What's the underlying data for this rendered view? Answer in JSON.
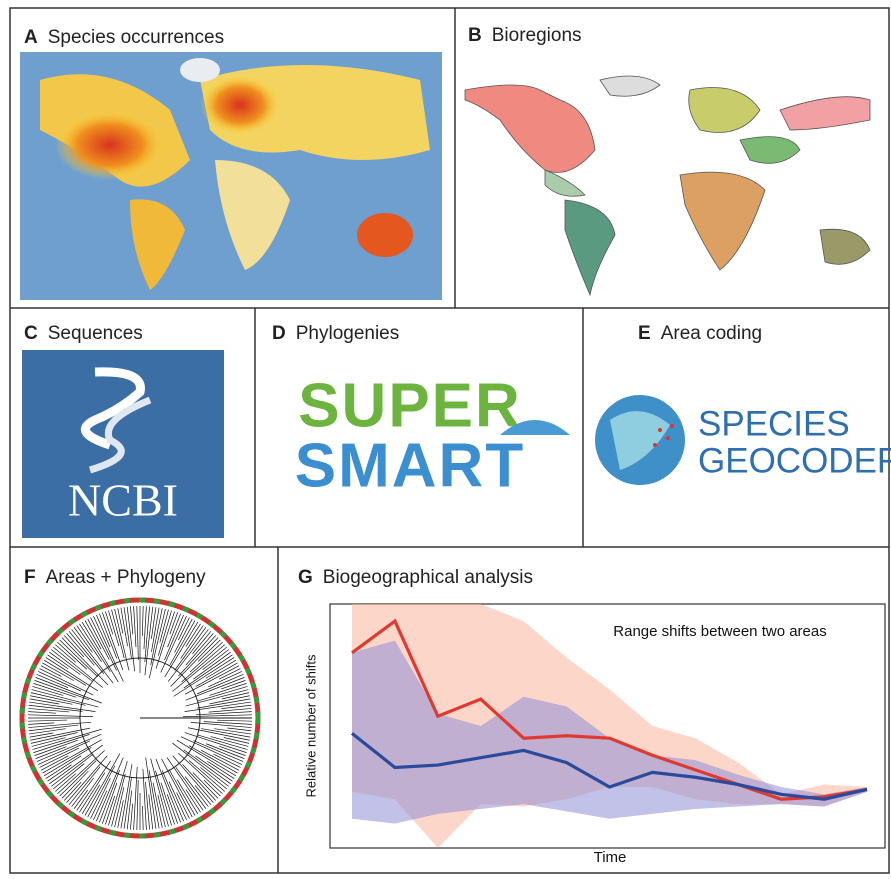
{
  "panels": [
    {
      "letter": "A",
      "title": "Species occurrences"
    },
    {
      "letter": "B",
      "title": "Bioregions"
    },
    {
      "letter": "C",
      "title": "Sequences"
    },
    {
      "letter": "D",
      "title": "Phylogenies"
    },
    {
      "letter": "E",
      "title": "Area coding"
    },
    {
      "letter": "F",
      "title": "Areas + Phylogeny"
    },
    {
      "letter": "G",
      "title": "Biogeographical analysis"
    }
  ],
  "logos": {
    "ncbi": "NCBI",
    "supersmart": [
      "SUPER",
      "SMART"
    ],
    "geocoder": [
      "SPECIES",
      "GEOCODER"
    ]
  },
  "chart_data": {
    "type": "line",
    "title": "Range shifts between two areas",
    "x_label": "Time",
    "y_label": "Relative number of shifts",
    "x": [
      0,
      1,
      2,
      3,
      4,
      5,
      6,
      7,
      8,
      9,
      10,
      11,
      12
    ],
    "xlim": [
      0,
      12
    ],
    "ylim": [
      0,
      1
    ],
    "series": [
      {
        "color": "#e03a30",
        "band_color": "#f7b49c",
        "values": [
          0.8,
          0.93,
          0.54,
          0.61,
          0.45,
          0.46,
          0.45,
          0.38,
          0.32,
          0.26,
          0.2,
          0.21,
          0.24
        ],
        "upper": [
          1.0,
          1.0,
          1.0,
          1.0,
          0.93,
          0.78,
          0.65,
          0.5,
          0.45,
          0.35,
          0.22,
          0.26,
          0.25
        ],
        "lower": [
          0.23,
          0.2,
          0.0,
          0.18,
          0.17,
          0.2,
          0.25,
          0.25,
          0.2,
          0.18,
          0.18,
          0.17,
          0.23
        ]
      },
      {
        "color": "#2a4a9c",
        "band_color": "#8f8fd6",
        "values": [
          0.47,
          0.33,
          0.34,
          0.37,
          0.4,
          0.35,
          0.25,
          0.31,
          0.29,
          0.26,
          0.22,
          0.2,
          0.24
        ],
        "upper": [
          0.8,
          0.85,
          0.55,
          0.5,
          0.62,
          0.58,
          0.45,
          0.38,
          0.36,
          0.3,
          0.25,
          0.22,
          0.25
        ],
        "lower": [
          0.12,
          0.1,
          0.14,
          0.16,
          0.18,
          0.15,
          0.12,
          0.14,
          0.16,
          0.17,
          0.18,
          0.17,
          0.23
        ]
      }
    ]
  }
}
